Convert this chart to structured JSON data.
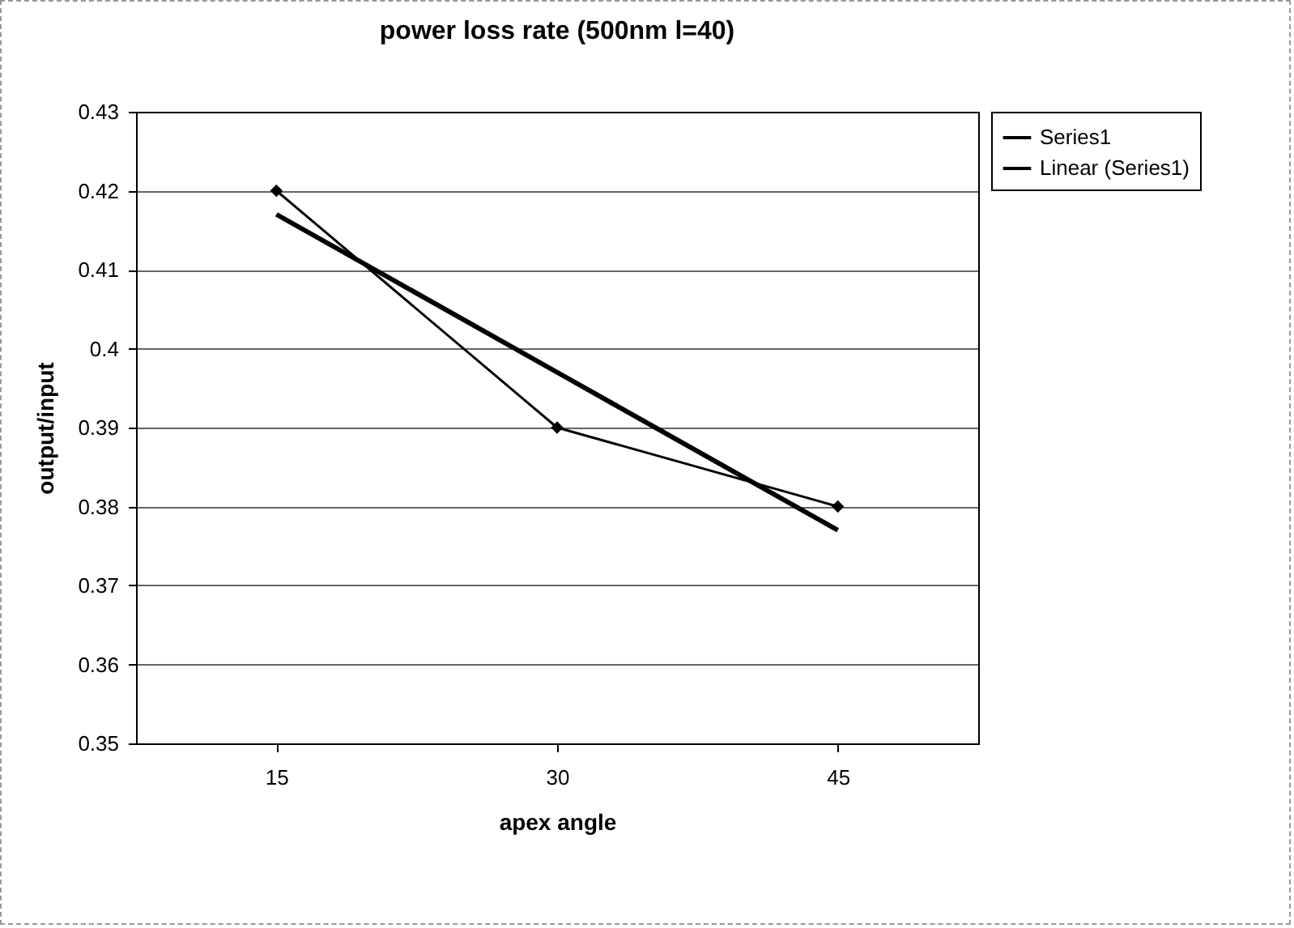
{
  "chart_data": {
    "type": "line",
    "title": "power loss rate (500nm l=40)",
    "xlabel": "apex angle",
    "ylabel": "output/input",
    "categories": [
      "15",
      "30",
      "45"
    ],
    "series": [
      {
        "name": "Series1",
        "color": "#000000",
        "marker": "diamond",
        "values": [
          0.42,
          0.39,
          0.38
        ]
      },
      {
        "name": "Linear (Series1)",
        "color": "#000000",
        "marker": "none",
        "values": [
          0.417,
          0.397,
          0.377
        ]
      }
    ],
    "ylim": [
      0.35,
      0.43
    ],
    "yticks": [
      0.35,
      0.36,
      0.37,
      0.38,
      0.39,
      0.4,
      0.41,
      0.42,
      0.43
    ],
    "grid": "y",
    "legend": "right"
  }
}
